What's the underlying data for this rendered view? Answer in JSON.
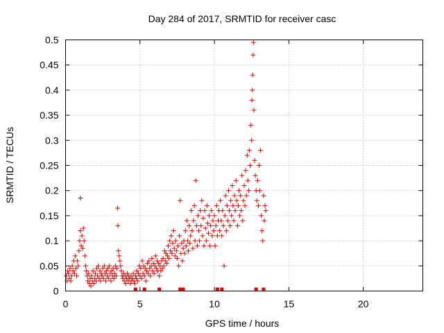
{
  "chart_data": {
    "type": "scatter",
    "title": "Day 284 of 2017, SRMTID for receiver casc",
    "xlabel": "GPS time / hours",
    "ylabel": "SRMTID / TECUs",
    "xlim": [
      0,
      24
    ],
    "ylim": [
      0,
      0.5
    ],
    "grid": true,
    "x_ticks": [
      0,
      5,
      10,
      15,
      20
    ],
    "x_tick_labels": [
      "0",
      "5",
      "10",
      "15",
      "20"
    ],
    "y_ticks": [
      0,
      0.05,
      0.1,
      0.15,
      0.2,
      0.25,
      0.3,
      0.35,
      0.4,
      0.45,
      0.5
    ],
    "y_tick_labels": [
      "0",
      "0.05",
      "0.1",
      "0.15",
      "0.2",
      "0.25",
      "0.3",
      "0.35",
      "0.4",
      "0.45",
      "0.5"
    ],
    "marker": "+",
    "color": "#e00000",
    "series": [
      {
        "name": "SRMTID",
        "points": [
          [
            0.05,
            0.03
          ],
          [
            0.1,
            0.02
          ],
          [
            0.15,
            0.04
          ],
          [
            0.2,
            0.035
          ],
          [
            0.25,
            0.025
          ],
          [
            0.3,
            0.045
          ],
          [
            0.35,
            0.02
          ],
          [
            0.4,
            0.03
          ],
          [
            0.45,
            0.05
          ],
          [
            0.5,
            0.04
          ],
          [
            0.55,
            0.06
          ],
          [
            0.6,
            0.035
          ],
          [
            0.65,
            0.07
          ],
          [
            0.7,
            0.045
          ],
          [
            0.75,
            0.03
          ],
          [
            0.8,
            0.06
          ],
          [
            0.85,
            0.05
          ],
          [
            0.9,
            0.08
          ],
          [
            0.95,
            0.1
          ],
          [
            1.0,
            0.12
          ],
          [
            1.0,
            0.185
          ],
          [
            1.05,
            0.09
          ],
          [
            1.1,
            0.11
          ],
          [
            1.15,
            0.085
          ],
          [
            1.2,
            0.125
          ],
          [
            1.25,
            0.1
          ],
          [
            1.3,
            0.07
          ],
          [
            1.35,
            0.05
          ],
          [
            1.4,
            0.04
          ],
          [
            1.45,
            0.03
          ],
          [
            1.5,
            0.02
          ],
          [
            1.55,
            0.035
          ],
          [
            1.6,
            0.015
          ],
          [
            1.65,
            0.025
          ],
          [
            1.7,
            0.01
          ],
          [
            1.75,
            0.03
          ],
          [
            1.8,
            0.02
          ],
          [
            1.85,
            0.04
          ],
          [
            1.9,
            0.015
          ],
          [
            1.95,
            0.025
          ],
          [
            2.0,
            0.035
          ],
          [
            2.05,
            0.02
          ],
          [
            2.1,
            0.045
          ],
          [
            2.15,
            0.03
          ],
          [
            2.2,
            0.05
          ],
          [
            2.25,
            0.025
          ],
          [
            2.3,
            0.04
          ],
          [
            2.35,
            0.02
          ],
          [
            2.4,
            0.035
          ],
          [
            2.45,
            0.03
          ],
          [
            2.5,
            0.045
          ],
          [
            2.55,
            0.025
          ],
          [
            2.6,
            0.05
          ],
          [
            2.65,
            0.035
          ],
          [
            2.7,
            0.02
          ],
          [
            2.75,
            0.04
          ],
          [
            2.8,
            0.03
          ],
          [
            2.85,
            0.045
          ],
          [
            2.9,
            0.025
          ],
          [
            2.95,
            0.05
          ],
          [
            3.0,
            0.035
          ],
          [
            3.05,
            0.02
          ],
          [
            3.1,
            0.04
          ],
          [
            3.15,
            0.03
          ],
          [
            3.2,
            0.045
          ],
          [
            3.25,
            0.025
          ],
          [
            3.3,
            0.035
          ],
          [
            3.35,
            0.05
          ],
          [
            3.4,
            0.03
          ],
          [
            3.45,
            0.045
          ],
          [
            3.5,
            0.165
          ],
          [
            3.52,
            0.13
          ],
          [
            3.55,
            0.08
          ],
          [
            3.6,
            0.07
          ],
          [
            3.65,
            0.06
          ],
          [
            3.7,
            0.05
          ],
          [
            3.75,
            0.04
          ],
          [
            3.8,
            0.03
          ],
          [
            3.85,
            0.025
          ],
          [
            3.9,
            0.035
          ],
          [
            3.95,
            0.02
          ],
          [
            4.0,
            0.03
          ],
          [
            4.05,
            0.015
          ],
          [
            4.1,
            0.025
          ],
          [
            4.15,
            0.035
          ],
          [
            4.2,
            0.02
          ],
          [
            4.25,
            0.03
          ],
          [
            4.3,
            0.025
          ],
          [
            4.35,
            0.015
          ],
          [
            4.4,
            0.03
          ],
          [
            4.45,
            0.02
          ],
          [
            4.5,
            0.025
          ],
          [
            4.55,
            0.035
          ],
          [
            4.6,
            0.02
          ],
          [
            4.65,
            0.015
          ],
          [
            4.7,
            0.03
          ],
          [
            4.75,
            0.025
          ],
          [
            4.8,
            0.04
          ],
          [
            4.85,
            0.02
          ],
          [
            4.9,
            0.035
          ],
          [
            4.95,
            0.05
          ],
          [
            5.0,
            0.03
          ],
          [
            5.05,
            0.045
          ],
          [
            5.1,
            0.025
          ],
          [
            5.15,
            0.06
          ],
          [
            5.2,
            0.035
          ],
          [
            5.25,
            0.05
          ],
          [
            5.3,
            0.03
          ],
          [
            5.35,
            0.045
          ],
          [
            5.4,
            0.02
          ],
          [
            5.45,
            0.04
          ],
          [
            5.5,
            0.055
          ],
          [
            5.55,
            0.035
          ],
          [
            5.6,
            0.06
          ],
          [
            5.65,
            0.045
          ],
          [
            5.7,
            0.03
          ],
          [
            5.75,
            0.05
          ],
          [
            5.8,
            0.065
          ],
          [
            5.85,
            0.04
          ],
          [
            5.9,
            0.055
          ],
          [
            5.95,
            0.035
          ],
          [
            6.0,
            0.05
          ],
          [
            6.05,
            0.07
          ],
          [
            6.1,
            0.045
          ],
          [
            6.15,
            0.06
          ],
          [
            6.2,
            0.04
          ],
          [
            6.25,
            0.055
          ],
          [
            6.3,
            0.03
          ],
          [
            6.35,
            0.05
          ],
          [
            6.4,
            0.04
          ],
          [
            6.45,
            0.06
          ],
          [
            6.5,
            0.045
          ],
          [
            6.55,
            0.065
          ],
          [
            6.6,
            0.05
          ],
          [
            6.65,
            0.08
          ],
          [
            6.7,
            0.06
          ],
          [
            6.75,
            0.075
          ],
          [
            6.8,
            0.055
          ],
          [
            6.85,
            0.07
          ],
          [
            6.9,
            0.09
          ],
          [
            6.95,
            0.065
          ],
          [
            7.0,
            0.1
          ],
          [
            7.05,
            0.08
          ],
          [
            7.1,
            0.11
          ],
          [
            7.15,
            0.075
          ],
          [
            7.2,
            0.095
          ],
          [
            7.25,
            0.12
          ],
          [
            7.3,
            0.085
          ],
          [
            7.35,
            0.07
          ],
          [
            7.4,
            0.1
          ],
          [
            7.45,
            0.08
          ],
          [
            7.5,
            0.065
          ],
          [
            7.55,
            0.09
          ],
          [
            7.6,
            0.05
          ],
          [
            7.65,
            0.11
          ],
          [
            7.7,
            0.18
          ],
          [
            7.75,
            0.075
          ],
          [
            7.8,
            0.095
          ],
          [
            7.85,
            0.06
          ],
          [
            7.9,
            0.085
          ],
          [
            7.95,
            0.1
          ],
          [
            8.0,
            0.075
          ],
          [
            8.05,
            0.12
          ],
          [
            8.1,
            0.09
          ],
          [
            8.15,
            0.14
          ],
          [
            8.2,
            0.1
          ],
          [
            8.25,
            0.08
          ],
          [
            8.3,
            0.13
          ],
          [
            8.35,
            0.095
          ],
          [
            8.4,
            0.11
          ],
          [
            8.45,
            0.16
          ],
          [
            8.5,
            0.12
          ],
          [
            8.55,
            0.085
          ],
          [
            8.6,
            0.14
          ],
          [
            8.65,
            0.17
          ],
          [
            8.7,
            0.1
          ],
          [
            8.75,
            0.22
          ],
          [
            8.8,
            0.13
          ],
          [
            8.85,
            0.09
          ],
          [
            8.9,
            0.15
          ],
          [
            8.95,
            0.12
          ],
          [
            9.0,
            0.1
          ],
          [
            9.05,
            0.16
          ],
          [
            9.1,
            0.13
          ],
          [
            9.15,
            0.18
          ],
          [
            9.2,
            0.11
          ],
          [
            9.25,
            0.145
          ],
          [
            9.3,
            0.09
          ],
          [
            9.35,
            0.16
          ],
          [
            9.4,
            0.125
          ],
          [
            9.45,
            0.1
          ],
          [
            9.5,
            0.17
          ],
          [
            9.55,
            0.135
          ],
          [
            9.6,
            0.115
          ],
          [
            9.65,
            0.15
          ],
          [
            9.7,
            0.09
          ],
          [
            9.75,
            0.13
          ],
          [
            9.8,
            0.16
          ],
          [
            9.85,
            0.11
          ],
          [
            9.9,
            0.14
          ],
          [
            9.95,
            0.12
          ],
          [
            10.0,
            0.15
          ],
          [
            10.05,
            0.09
          ],
          [
            10.1,
            0.13
          ],
          [
            10.15,
            0.17
          ],
          [
            10.2,
            0.11
          ],
          [
            10.25,
            0.14
          ],
          [
            10.3,
            0.16
          ],
          [
            10.35,
            0.12
          ],
          [
            10.4,
            0.18
          ],
          [
            10.45,
            0.14
          ],
          [
            10.5,
            0.11
          ],
          [
            10.55,
            0.16
          ],
          [
            10.6,
            0.13
          ],
          [
            10.65,
            0.05
          ],
          [
            10.7,
            0.15
          ],
          [
            10.75,
            0.19
          ],
          [
            10.8,
            0.12
          ],
          [
            10.85,
            0.17
          ],
          [
            10.9,
            0.14
          ],
          [
            10.95,
            0.2
          ],
          [
            11.0,
            0.16
          ],
          [
            11.05,
            0.13
          ],
          [
            11.1,
            0.18
          ],
          [
            11.15,
            0.15
          ],
          [
            11.2,
            0.21
          ],
          [
            11.25,
            0.17
          ],
          [
            11.3,
            0.14
          ],
          [
            11.35,
            0.19
          ],
          [
            11.4,
            0.16
          ],
          [
            11.45,
            0.22
          ],
          [
            11.5,
            0.18
          ],
          [
            11.55,
            0.13
          ],
          [
            11.6,
            0.17
          ],
          [
            11.65,
            0.2
          ],
          [
            11.7,
            0.15
          ],
          [
            11.75,
            0.19
          ],
          [
            11.8,
            0.16
          ],
          [
            11.85,
            0.23
          ],
          [
            11.9,
            0.14
          ],
          [
            11.95,
            0.18
          ],
          [
            12.0,
            0.21
          ],
          [
            12.05,
            0.17
          ],
          [
            12.1,
            0.24
          ],
          [
            12.15,
            0.19
          ],
          [
            12.2,
            0.27
          ],
          [
            12.25,
            0.22
          ],
          [
            12.3,
            0.2
          ],
          [
            12.35,
            0.28
          ],
          [
            12.4,
            0.25
          ],
          [
            12.45,
            0.33
          ],
          [
            12.5,
            0.3
          ],
          [
            12.52,
            0.38
          ],
          [
            12.55,
            0.4
          ],
          [
            12.57,
            0.43
          ],
          [
            12.6,
            0.47
          ],
          [
            12.62,
            0.495
          ],
          [
            12.65,
            0.36
          ],
          [
            12.7,
            0.26
          ],
          [
            12.75,
            0.23
          ],
          [
            12.8,
            0.2
          ],
          [
            12.85,
            0.18
          ],
          [
            12.9,
            0.22
          ],
          [
            12.95,
            0.17
          ],
          [
            13.0,
            0.25
          ],
          [
            13.05,
            0.2
          ],
          [
            13.1,
            0.28
          ],
          [
            13.15,
            0.15
          ],
          [
            13.2,
            0.12
          ],
          [
            13.25,
            0.1
          ],
          [
            13.3,
            0.19
          ],
          [
            13.35,
            0.14
          ],
          [
            13.4,
            0.17
          ],
          [
            13.45,
            0.16
          ]
        ]
      }
    ],
    "gap_markers_x": [
      4.7,
      5.3,
      6.3,
      7.7,
      7.9,
      10.2,
      10.5,
      12.8,
      13.3
    ]
  }
}
